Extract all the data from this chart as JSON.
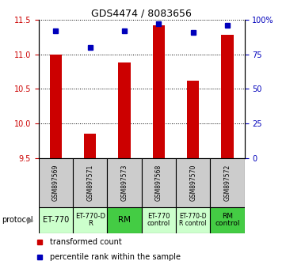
{
  "title": "GDS4474 / 8083656",
  "samples": [
    "GSM897569",
    "GSM897571",
    "GSM897573",
    "GSM897568",
    "GSM897570",
    "GSM897572"
  ],
  "red_values": [
    11.0,
    9.85,
    10.88,
    11.42,
    10.62,
    11.28
  ],
  "blue_values": [
    92,
    80,
    92,
    97,
    91,
    96
  ],
  "ylim_left": [
    9.5,
    11.5
  ],
  "ylim_right": [
    0,
    100
  ],
  "yticks_left": [
    9.5,
    10.0,
    10.5,
    11.0,
    11.5
  ],
  "yticks_right": [
    0,
    25,
    50,
    75,
    100
  ],
  "ytick_labels_right": [
    "0",
    "25",
    "50",
    "75",
    "100%"
  ],
  "protocol_labels": [
    "ET-770",
    "ET-770-D\nR",
    "RM",
    "ET-770\ncontrol",
    "ET-770-D\nR control",
    "RM\ncontrol"
  ],
  "protocol_colors": [
    "#ccffcc",
    "#ccffcc",
    "#44cc44",
    "#ccffcc",
    "#ccffcc",
    "#44cc44"
  ],
  "sample_bg": "#cccccc",
  "bar_color": "#cc0000",
  "dot_color": "#0000bb",
  "legend_red_label": "transformed count",
  "legend_blue_label": "percentile rank within the sample",
  "bar_width": 0.35,
  "title_fontsize": 9,
  "tick_fontsize": 7,
  "sample_fontsize": 5.5,
  "proto_fontsize": [
    7,
    6,
    7.5,
    6,
    5.5,
    6.5
  ],
  "legend_fontsize": 7
}
